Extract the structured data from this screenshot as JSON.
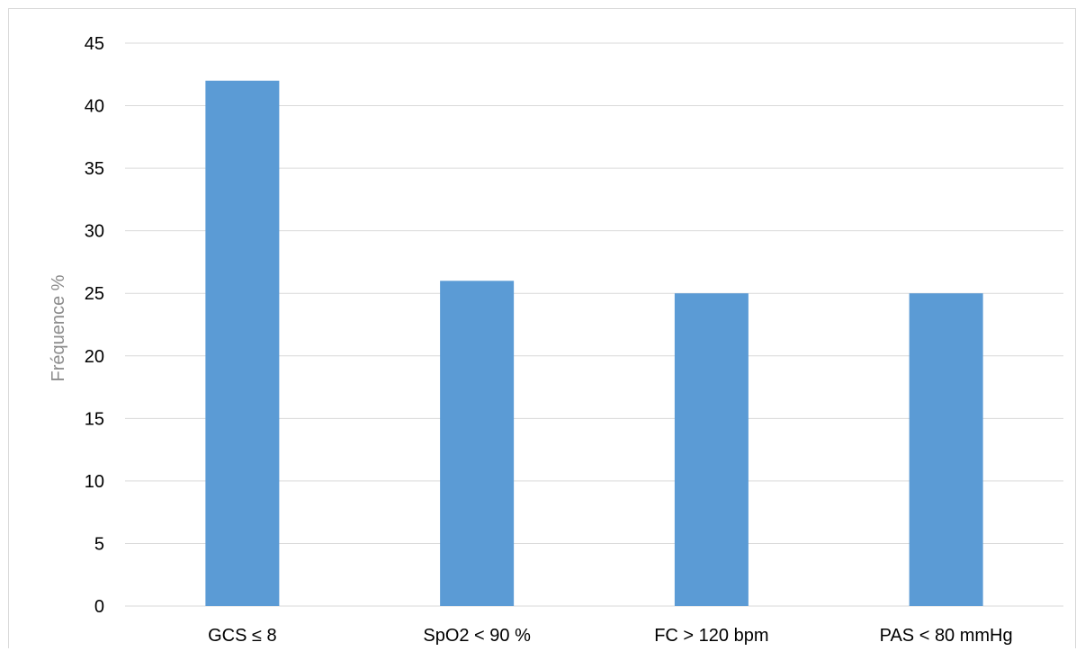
{
  "chart_data": {
    "type": "bar",
    "categories": [
      "GCS ≤ 8",
      "SpO2 < 90 %",
      "FC > 120 bpm",
      "PAS < 80 mmHg"
    ],
    "values": [
      42,
      26,
      25,
      25
    ],
    "ylabel": "Fréquence %",
    "ylim": [
      0,
      45
    ],
    "yticks": [
      0,
      5,
      10,
      15,
      20,
      25,
      30,
      35,
      40,
      45
    ],
    "grid": true,
    "legend": "none",
    "bar_color": "#5b9bd5",
    "grid_color": "#d9d9d9"
  }
}
